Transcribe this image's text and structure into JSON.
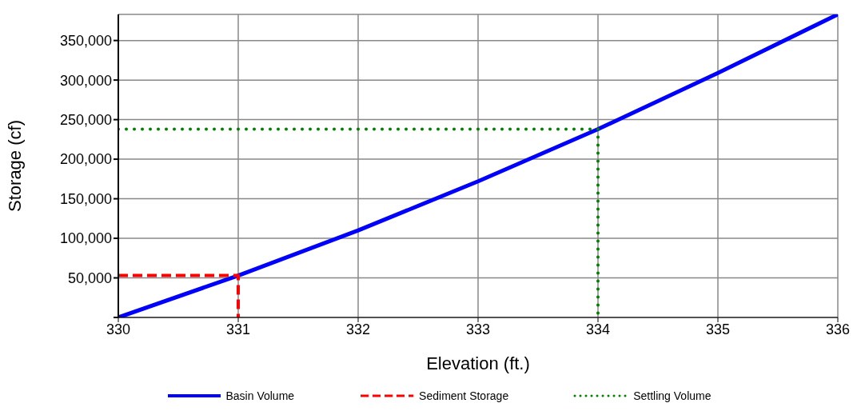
{
  "chart_data": {
    "type": "line",
    "xlabel": "Elevation (ft.)",
    "ylabel": "Storage (cf)",
    "xlim": [
      330,
      336
    ],
    "xticks": [
      330,
      331,
      332,
      333,
      334,
      335,
      336
    ],
    "ylim": [
      0,
      383000
    ],
    "yticks": [
      {
        "value": 0,
        "label": null
      },
      {
        "value": 50000,
        "label": "50,000"
      },
      {
        "value": 100000,
        "label": "100,000"
      },
      {
        "value": 150000,
        "label": "150,000"
      },
      {
        "value": 200000,
        "label": "200,000"
      },
      {
        "value": 250000,
        "label": "250,000"
      },
      {
        "value": 300000,
        "label": "300,000"
      },
      {
        "value": 350000,
        "label": "350,000"
      }
    ],
    "grid": true,
    "legend": "bottom",
    "marker": "none",
    "series": [
      {
        "name": "Basin Volume",
        "color": "#0000ff",
        "line_style": "solid",
        "x": [
          330,
          331,
          332,
          333,
          334,
          335,
          336
        ],
        "values": [
          0,
          53000,
          110000,
          172000,
          238000,
          309000,
          383000
        ]
      },
      {
        "name": "Sediment Storage",
        "color": "#ff0000",
        "line_style": "dashed",
        "x": [
          330,
          331,
          331
        ],
        "values": [
          53000,
          53000,
          0
        ]
      },
      {
        "name": "Settling Volume",
        "color": "#008000",
        "line_style": "dotted",
        "x": [
          330,
          334,
          334
        ],
        "values": [
          238000,
          238000,
          0
        ]
      }
    ]
  }
}
